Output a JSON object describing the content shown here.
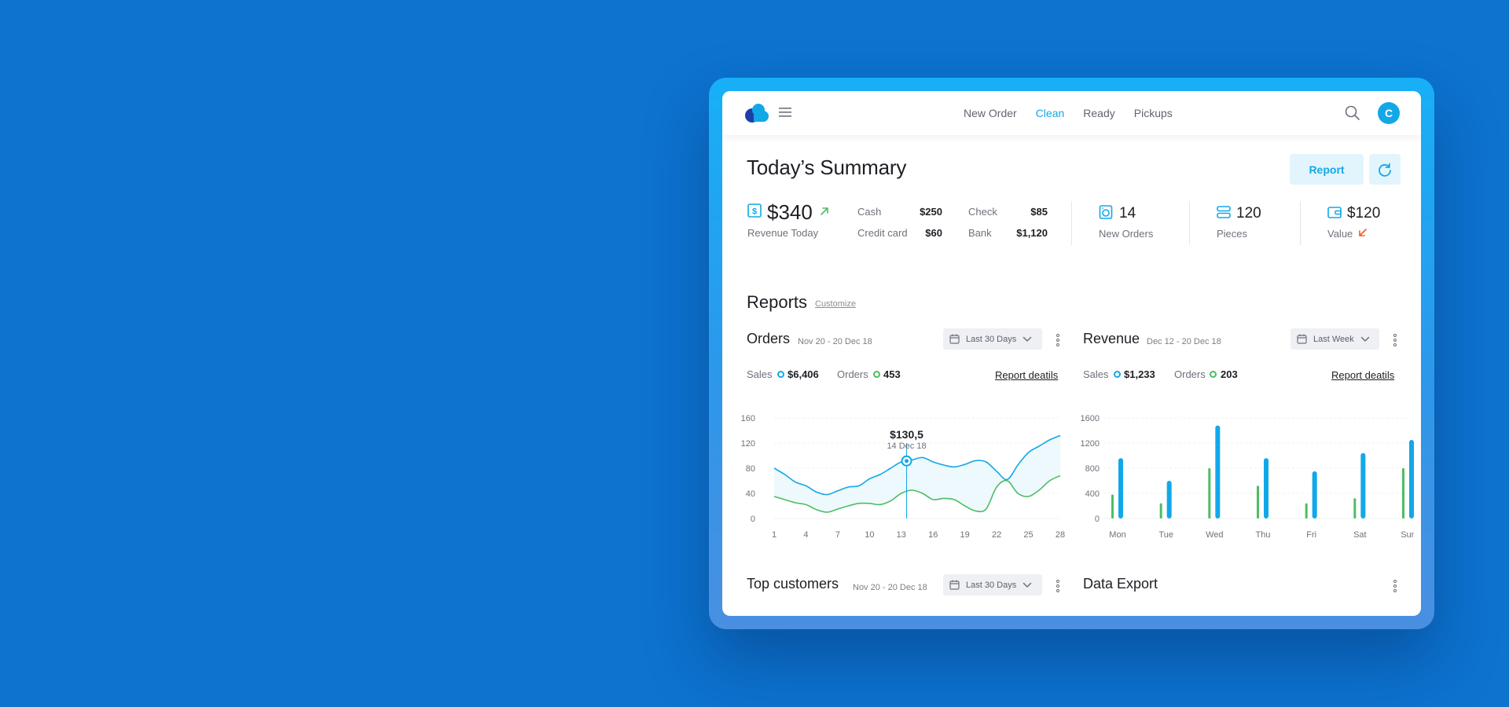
{
  "nav": {
    "items": [
      "New Order",
      "Clean",
      "Ready",
      "Pickups"
    ],
    "active": "Clean",
    "avatar_initial": "C"
  },
  "summary": {
    "title": "Today’s Summary",
    "report_button": "Report",
    "revenue": {
      "amount": "$340",
      "label": "Revenue Today"
    },
    "payments": [
      {
        "label": "Cash",
        "value": "$250"
      },
      {
        "label": "Credit card",
        "value": "$60"
      },
      {
        "label": "Check",
        "value": "$85"
      },
      {
        "label": "Bank",
        "value": "$1,120"
      }
    ],
    "kpis": [
      {
        "value": "14",
        "label": "New Orders",
        "icon": "washer-icon"
      },
      {
        "value": "120",
        "label": "Pieces",
        "icon": "stack-icon"
      },
      {
        "value": "$120",
        "label": "Value",
        "icon": "wallet-icon"
      }
    ]
  },
  "reports": {
    "title": "Reports",
    "customize": "Customize",
    "orders_card": {
      "title": "Orders",
      "range": "Nov 20 - 20 Dec 18",
      "dropdown": "Last 30 Days",
      "sales_label": "Sales",
      "sales_value": "$6,406",
      "orders_label": "Orders",
      "orders_value": "453",
      "details_link": "Report deatils"
    },
    "revenue_card": {
      "title": "Revenue",
      "range": "Dec 12 - 20 Dec 18",
      "dropdown": "Last Week",
      "sales_label": "Sales",
      "sales_value": "$1,233",
      "orders_label": "Orders",
      "orders_value": "203",
      "details_link": "Report deatils"
    },
    "customers_card": {
      "title": "Top customers",
      "range": "Nov 20 - 20 Dec 18",
      "dropdown": "Last 30 Days"
    },
    "export_card": {
      "title": "Data Export"
    }
  },
  "colors": {
    "accent": "#12a8e8",
    "green": "#4cbd63",
    "up": "#4cbd63",
    "down": "#f05a28"
  },
  "chart_data": [
    {
      "type": "line",
      "x": [
        1,
        2,
        3,
        4,
        5,
        6,
        7,
        8,
        9,
        10,
        11,
        12,
        13,
        14,
        15,
        16,
        17,
        18,
        19,
        20,
        21,
        22,
        23,
        24,
        25,
        26,
        27,
        28
      ],
      "series": [
        {
          "name": "Sales",
          "color": "#12a8e8",
          "values": [
            80,
            70,
            58,
            52,
            42,
            38,
            44,
            50,
            52,
            63,
            70,
            80,
            90,
            93,
            97,
            90,
            85,
            82,
            86,
            92,
            90,
            75,
            62,
            85,
            105,
            115,
            125,
            132
          ]
        },
        {
          "name": "Orders",
          "color": "#4cbd63",
          "values": [
            35,
            30,
            25,
            22,
            14,
            10,
            15,
            20,
            24,
            24,
            22,
            28,
            40,
            45,
            40,
            30,
            32,
            30,
            20,
            12,
            15,
            50,
            60,
            40,
            35,
            45,
            60,
            68
          ]
        }
      ],
      "xticks": [
        1,
        4,
        7,
        10,
        13,
        16,
        19,
        22,
        25,
        28
      ],
      "yticks": [
        0,
        40,
        80,
        120,
        160
      ],
      "ylim": [
        0,
        160
      ],
      "tooltip": {
        "x": 13.5,
        "value": "$130,5",
        "date": "14 Dec 18"
      }
    },
    {
      "type": "bar",
      "categories": [
        "Mon",
        "Tue",
        "Wed",
        "Thu",
        "Fri",
        "Sat",
        "Sun"
      ],
      "series": [
        {
          "name": "Orders",
          "color": "#4cbd63",
          "values": [
            380,
            240,
            800,
            520,
            240,
            320,
            800
          ]
        },
        {
          "name": "Sales",
          "color": "#12a8e8",
          "values": [
            960,
            600,
            1480,
            960,
            750,
            1040,
            1250
          ]
        }
      ],
      "yticks": [
        0,
        400,
        800,
        1200,
        1600
      ],
      "ylim": [
        0,
        1600
      ]
    }
  ]
}
